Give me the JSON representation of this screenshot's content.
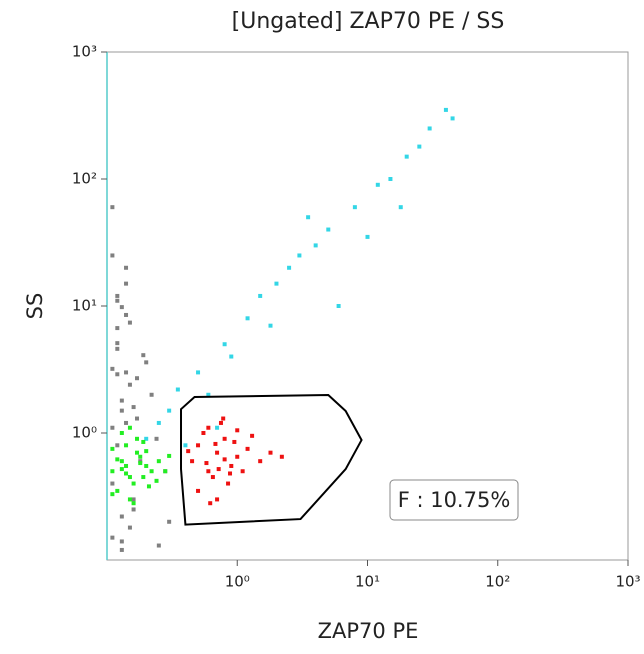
{
  "chart_data": {
    "type": "scatter",
    "title": "[Ungated] ZAP70 PE / SS",
    "x_label": "ZAP70 PE",
    "y_label": "SS",
    "log_x": true,
    "log_y": true,
    "xlim": [
      0.1,
      1000
    ],
    "ylim": [
      0.1,
      1000
    ],
    "xticks": [
      {
        "value": 1,
        "label": "10⁰"
      },
      {
        "value": 10,
        "label": "10¹"
      },
      {
        "value": 100,
        "label": "10²"
      },
      {
        "value": 1000,
        "label": "10³"
      }
    ],
    "yticks": [
      {
        "value": 1,
        "label": "10⁰"
      },
      {
        "value": 10,
        "label": "10¹"
      },
      {
        "value": 100,
        "label": "10²"
      },
      {
        "value": 1000,
        "label": "10³"
      }
    ],
    "series": [
      {
        "color": "#808080",
        "x": [
          0.11,
          0.12,
          0.13,
          0.14,
          0.15,
          0.12,
          0.17,
          0.11,
          0.13,
          0.19,
          0.14,
          0.16,
          0.12,
          0.22,
          0.11,
          0.15,
          0.13,
          0.18,
          0.12,
          0.25,
          0.14,
          0.11,
          0.16,
          0.13,
          0.2,
          0.12,
          0.15,
          0.11,
          0.3,
          0.14,
          0.17,
          0.12,
          0.13,
          0.24,
          0.11,
          0.16,
          0.12,
          0.28,
          0.14,
          0.13
        ],
        "values": [
          3.2,
          5.1,
          1.8,
          8.5,
          2.4,
          12,
          1.3,
          0.15,
          0.22,
          4.1,
          15,
          0.3,
          6.7,
          2.0,
          1.1,
          0.18,
          9.8,
          0.6,
          2.9,
          0.13,
          20,
          0.4,
          1.6,
          0.12,
          3.6,
          0.8,
          7.4,
          25,
          0.2,
          1.2,
          2.7,
          4.6,
          0.14,
          0.9,
          60,
          0.25,
          11,
          0.5,
          3.0,
          1.5
        ]
      },
      {
        "color": "#33d6e6",
        "x": [
          0.3,
          0.5,
          0.8,
          1.2,
          2,
          3,
          5,
          8,
          12,
          20,
          30,
          40,
          0.6,
          1.5,
          4,
          10,
          25,
          0.9,
          2.5,
          6,
          15,
          0.4,
          0.7,
          1.8,
          3.5,
          0.25,
          0.35,
          0.2,
          45,
          18
        ],
        "values": [
          1.5,
          3,
          5,
          8,
          15,
          25,
          40,
          60,
          90,
          150,
          250,
          350,
          2,
          12,
          30,
          35,
          180,
          4,
          20,
          10,
          100,
          0.8,
          1.1,
          7,
          50,
          1.2,
          2.2,
          0.9,
          300,
          60
        ]
      },
      {
        "color": "#22ee22",
        "x": [
          0.11,
          0.13,
          0.15,
          0.17,
          0.2,
          0.12,
          0.14,
          0.16,
          0.18,
          0.22,
          0.25,
          0.13,
          0.15,
          0.19,
          0.11,
          0.14,
          0.17,
          0.21,
          0.28,
          0.12,
          0.16,
          0.2,
          0.24,
          0.13,
          0.15,
          0.18,
          0.3,
          0.14,
          0.11,
          0.19
        ],
        "values": [
          0.5,
          0.6,
          0.45,
          0.7,
          0.55,
          0.35,
          0.8,
          0.4,
          0.65,
          0.5,
          0.6,
          1.0,
          0.3,
          0.45,
          0.75,
          0.55,
          0.9,
          0.38,
          0.5,
          0.62,
          0.28,
          0.72,
          0.42,
          0.52,
          1.1,
          0.58,
          0.66,
          0.48,
          0.33,
          0.85
        ]
      },
      {
        "color": "#ee1111",
        "x": [
          0.45,
          0.5,
          0.6,
          0.7,
          0.8,
          0.9,
          1.0,
          1.2,
          1.5,
          0.55,
          0.65,
          0.75,
          0.85,
          0.95,
          1.1,
          0.5,
          0.6,
          0.7,
          0.8,
          1.3,
          1.8,
          0.42,
          0.58,
          0.68,
          0.78,
          0.88,
          2.2,
          0.62,
          0.72,
          1.0
        ],
        "values": [
          0.6,
          0.8,
          0.5,
          0.7,
          0.9,
          0.55,
          0.65,
          0.75,
          0.6,
          1.0,
          0.45,
          1.2,
          0.4,
          0.85,
          0.5,
          0.35,
          1.1,
          0.3,
          0.62,
          0.95,
          0.7,
          0.72,
          0.58,
          0.82,
          1.3,
          0.48,
          0.65,
          0.28,
          0.52,
          1.05
        ]
      }
    ],
    "gate": {
      "label": "F : 10.75%",
      "color": "#000000",
      "x": [
        0.37,
        0.47,
        5.0,
        6.8,
        9.0,
        6.8,
        3.06,
        0.4,
        0.37
      ],
      "values": [
        1.54,
        1.92,
        1.99,
        1.49,
        0.88,
        0.52,
        0.21,
        0.19,
        0.52
      ]
    }
  }
}
